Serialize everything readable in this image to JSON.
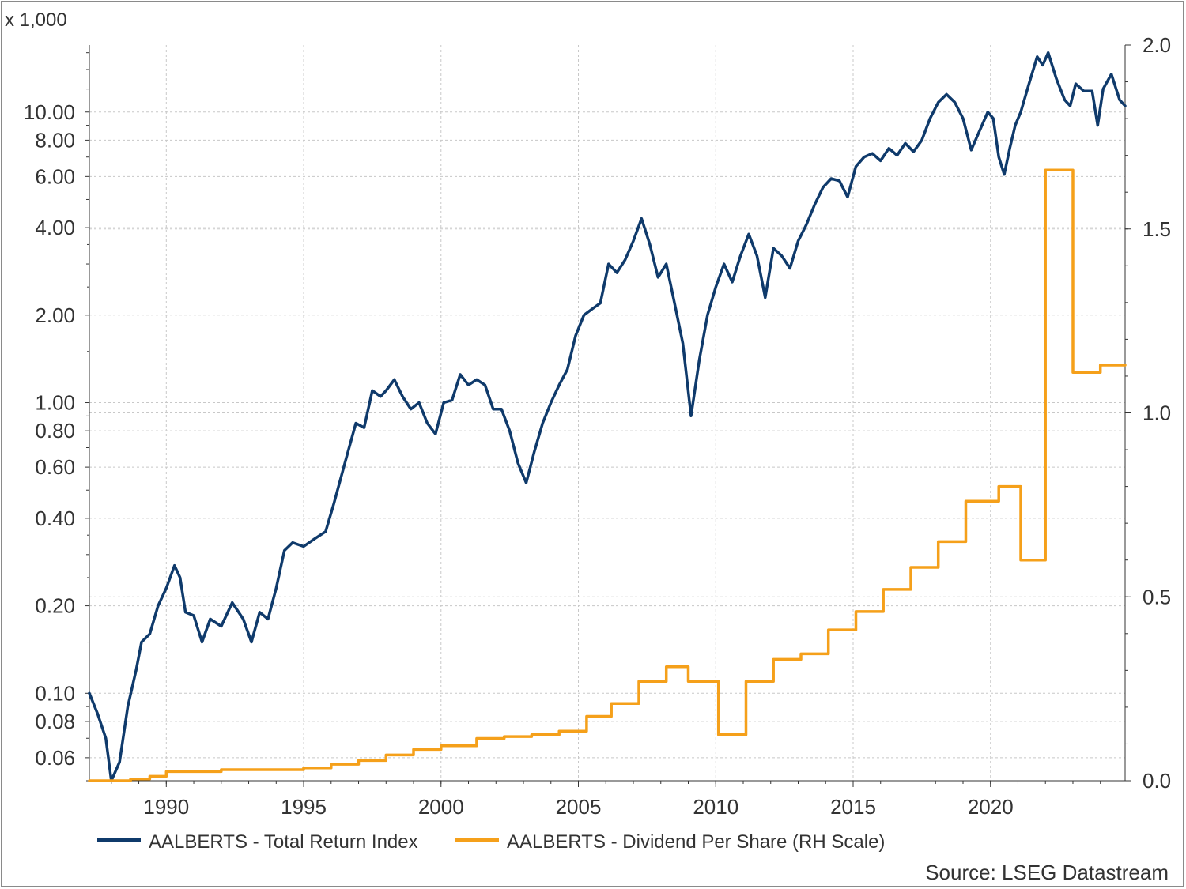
{
  "chart_data": {
    "type": "line",
    "y_left_unit": "x 1,000",
    "y_left_scale": "log",
    "y_left_ticks": [
      "10.00",
      "8.00",
      "6.00",
      "4.00",
      "2.00",
      "1.00",
      "0.80",
      "0.60",
      "0.40",
      "0.20",
      "0.10",
      "0.08",
      "0.06"
    ],
    "y_left_tick_values": [
      10,
      8,
      6,
      4,
      2,
      1,
      0.8,
      0.6,
      0.4,
      0.2,
      0.1,
      0.08,
      0.06
    ],
    "y_left_range": [
      0.05,
      17
    ],
    "y_right_ticks": [
      "2.0",
      "1.5",
      "1.0",
      "0.5",
      "0.0"
    ],
    "y_right_tick_values": [
      2.0,
      1.5,
      1.0,
      0.5,
      0.0
    ],
    "y_right_range": [
      0,
      2.0
    ],
    "x_ticks": [
      "1990",
      "1995",
      "2000",
      "2005",
      "2010",
      "2015",
      "2020"
    ],
    "x_tick_values": [
      1990,
      1995,
      2000,
      2005,
      2010,
      2015,
      2020
    ],
    "x_range": [
      1987.2,
      2024.9
    ],
    "grid": true,
    "legend_position": "bottom",
    "source": "Source: LSEG Datastream",
    "series": [
      {
        "name": "AALBERTS - Total Return Index",
        "axis": "left",
        "color": "#0f3a6b",
        "points": [
          [
            1987.2,
            0.1
          ],
          [
            1987.5,
            0.085
          ],
          [
            1987.8,
            0.07
          ],
          [
            1988.0,
            0.05
          ],
          [
            1988.3,
            0.058
          ],
          [
            1988.6,
            0.09
          ],
          [
            1988.9,
            0.12
          ],
          [
            1989.1,
            0.15
          ],
          [
            1989.4,
            0.16
          ],
          [
            1989.7,
            0.2
          ],
          [
            1990.0,
            0.23
          ],
          [
            1990.3,
            0.275
          ],
          [
            1990.5,
            0.25
          ],
          [
            1990.7,
            0.19
          ],
          [
            1991.0,
            0.185
          ],
          [
            1991.3,
            0.15
          ],
          [
            1991.6,
            0.18
          ],
          [
            1992.0,
            0.17
          ],
          [
            1992.4,
            0.205
          ],
          [
            1992.8,
            0.18
          ],
          [
            1993.1,
            0.15
          ],
          [
            1993.4,
            0.19
          ],
          [
            1993.7,
            0.18
          ],
          [
            1994.0,
            0.23
          ],
          [
            1994.3,
            0.31
          ],
          [
            1994.6,
            0.33
          ],
          [
            1995.0,
            0.32
          ],
          [
            1995.4,
            0.34
          ],
          [
            1995.8,
            0.36
          ],
          [
            1996.1,
            0.45
          ],
          [
            1996.5,
            0.62
          ],
          [
            1996.9,
            0.85
          ],
          [
            1997.2,
            0.82
          ],
          [
            1997.5,
            1.1
          ],
          [
            1997.8,
            1.05
          ],
          [
            1998.0,
            1.1
          ],
          [
            1998.3,
            1.2
          ],
          [
            1998.6,
            1.05
          ],
          [
            1998.9,
            0.95
          ],
          [
            1999.2,
            1.0
          ],
          [
            1999.5,
            0.85
          ],
          [
            1999.8,
            0.78
          ],
          [
            2000.1,
            1.0
          ],
          [
            2000.4,
            1.02
          ],
          [
            2000.7,
            1.25
          ],
          [
            2001.0,
            1.15
          ],
          [
            2001.3,
            1.2
          ],
          [
            2001.6,
            1.15
          ],
          [
            2001.9,
            0.95
          ],
          [
            2002.2,
            0.95
          ],
          [
            2002.5,
            0.8
          ],
          [
            2002.8,
            0.62
          ],
          [
            2003.1,
            0.53
          ],
          [
            2003.4,
            0.68
          ],
          [
            2003.7,
            0.85
          ],
          [
            2004.0,
            1.0
          ],
          [
            2004.3,
            1.15
          ],
          [
            2004.6,
            1.3
          ],
          [
            2004.9,
            1.7
          ],
          [
            2005.2,
            2.0
          ],
          [
            2005.5,
            2.1
          ],
          [
            2005.8,
            2.2
          ],
          [
            2006.1,
            3.0
          ],
          [
            2006.4,
            2.8
          ],
          [
            2006.7,
            3.1
          ],
          [
            2007.0,
            3.6
          ],
          [
            2007.3,
            4.3
          ],
          [
            2007.6,
            3.5
          ],
          [
            2007.9,
            2.7
          ],
          [
            2008.2,
            3.0
          ],
          [
            2008.5,
            2.2
          ],
          [
            2008.8,
            1.6
          ],
          [
            2009.1,
            0.9
          ],
          [
            2009.4,
            1.4
          ],
          [
            2009.7,
            2.0
          ],
          [
            2010.0,
            2.5
          ],
          [
            2010.3,
            3.0
          ],
          [
            2010.6,
            2.6
          ],
          [
            2010.9,
            3.2
          ],
          [
            2011.2,
            3.8
          ],
          [
            2011.5,
            3.2
          ],
          [
            2011.8,
            2.3
          ],
          [
            2012.1,
            3.4
          ],
          [
            2012.4,
            3.2
          ],
          [
            2012.7,
            2.9
          ],
          [
            2013.0,
            3.6
          ],
          [
            2013.3,
            4.1
          ],
          [
            2013.6,
            4.8
          ],
          [
            2013.9,
            5.5
          ],
          [
            2014.2,
            5.9
          ],
          [
            2014.5,
            5.8
          ],
          [
            2014.8,
            5.1
          ],
          [
            2015.1,
            6.5
          ],
          [
            2015.4,
            7.0
          ],
          [
            2015.7,
            7.2
          ],
          [
            2016.0,
            6.8
          ],
          [
            2016.3,
            7.5
          ],
          [
            2016.6,
            7.1
          ],
          [
            2016.9,
            7.8
          ],
          [
            2017.2,
            7.3
          ],
          [
            2017.5,
            8.0
          ],
          [
            2017.8,
            9.5
          ],
          [
            2018.1,
            10.8
          ],
          [
            2018.4,
            11.5
          ],
          [
            2018.7,
            10.8
          ],
          [
            2019.0,
            9.5
          ],
          [
            2019.3,
            7.4
          ],
          [
            2019.6,
            8.6
          ],
          [
            2019.9,
            10.0
          ],
          [
            2020.1,
            9.5
          ],
          [
            2020.3,
            7.0
          ],
          [
            2020.5,
            6.1
          ],
          [
            2020.7,
            7.5
          ],
          [
            2020.9,
            9.0
          ],
          [
            2021.1,
            10.0
          ],
          [
            2021.4,
            12.5
          ],
          [
            2021.7,
            15.5
          ],
          [
            2021.9,
            14.5
          ],
          [
            2022.1,
            16.0
          ],
          [
            2022.4,
            13.0
          ],
          [
            2022.7,
            11.0
          ],
          [
            2022.9,
            10.5
          ],
          [
            2023.1,
            12.5
          ],
          [
            2023.4,
            11.8
          ],
          [
            2023.7,
            11.8
          ],
          [
            2023.9,
            9.0
          ],
          [
            2024.1,
            12.0
          ],
          [
            2024.4,
            13.5
          ],
          [
            2024.7,
            11.0
          ],
          [
            2024.9,
            10.5
          ]
        ]
      },
      {
        "name": "AALBERTS - Dividend Per Share (RH Scale)",
        "axis": "right",
        "color": "#f5a01a",
        "points": [
          [
            1987.2,
            0.0
          ],
          [
            1988.7,
            0.0
          ],
          [
            1988.7,
            0.005
          ],
          [
            1989.4,
            0.005
          ],
          [
            1989.4,
            0.012
          ],
          [
            1990.0,
            0.012
          ],
          [
            1990.0,
            0.025
          ],
          [
            1992.0,
            0.025
          ],
          [
            1992.0,
            0.03
          ],
          [
            1995.0,
            0.03
          ],
          [
            1995.0,
            0.035
          ],
          [
            1996.0,
            0.035
          ],
          [
            1996.0,
            0.045
          ],
          [
            1997.0,
            0.045
          ],
          [
            1997.0,
            0.055
          ],
          [
            1998.0,
            0.055
          ],
          [
            1998.0,
            0.07
          ],
          [
            1999.0,
            0.07
          ],
          [
            1999.0,
            0.085
          ],
          [
            2000.0,
            0.085
          ],
          [
            2000.0,
            0.095
          ],
          [
            2001.3,
            0.095
          ],
          [
            2001.3,
            0.115
          ],
          [
            2002.3,
            0.115
          ],
          [
            2002.3,
            0.12
          ],
          [
            2003.3,
            0.12
          ],
          [
            2003.3,
            0.125
          ],
          [
            2004.3,
            0.125
          ],
          [
            2004.3,
            0.135
          ],
          [
            2005.3,
            0.135
          ],
          [
            2005.3,
            0.175
          ],
          [
            2006.2,
            0.175
          ],
          [
            2006.2,
            0.21
          ],
          [
            2007.2,
            0.21
          ],
          [
            2007.2,
            0.27
          ],
          [
            2008.2,
            0.27
          ],
          [
            2008.2,
            0.31
          ],
          [
            2009.0,
            0.31
          ],
          [
            2009.0,
            0.27
          ],
          [
            2010.1,
            0.27
          ],
          [
            2010.1,
            0.125
          ],
          [
            2011.1,
            0.125
          ],
          [
            2011.1,
            0.27
          ],
          [
            2012.1,
            0.27
          ],
          [
            2012.1,
            0.33
          ],
          [
            2013.1,
            0.33
          ],
          [
            2013.1,
            0.345
          ],
          [
            2014.1,
            0.345
          ],
          [
            2014.1,
            0.41
          ],
          [
            2015.1,
            0.41
          ],
          [
            2015.1,
            0.46
          ],
          [
            2016.1,
            0.46
          ],
          [
            2016.1,
            0.52
          ],
          [
            2017.1,
            0.52
          ],
          [
            2017.1,
            0.58
          ],
          [
            2018.1,
            0.58
          ],
          [
            2018.1,
            0.65
          ],
          [
            2019.1,
            0.65
          ],
          [
            2019.1,
            0.76
          ],
          [
            2020.3,
            0.76
          ],
          [
            2020.3,
            0.8
          ],
          [
            2021.1,
            0.8
          ],
          [
            2021.1,
            0.6
          ],
          [
            2022.0,
            0.6
          ],
          [
            2022.0,
            1.66
          ],
          [
            2023.0,
            1.66
          ],
          [
            2023.0,
            1.11
          ],
          [
            2024.0,
            1.11
          ],
          [
            2024.0,
            1.13
          ],
          [
            2024.9,
            1.13
          ]
        ]
      }
    ]
  }
}
